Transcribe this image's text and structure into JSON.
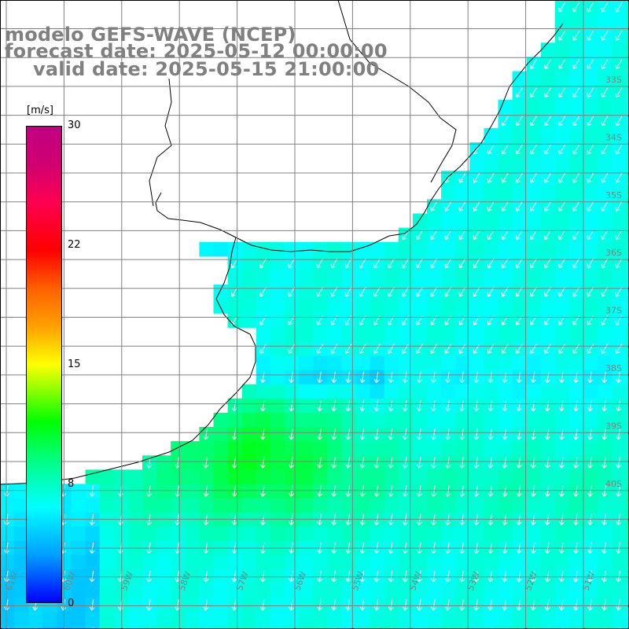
{
  "title": {
    "line1": "modelo GEFS-WAVE (NCEP)",
    "line2": "forecast date: 2025-05-12 00:00:00",
    "line3": "valid date: 2025-05-15 21:00:00"
  },
  "colorbar": {
    "unit": "[m/s]",
    "ticks": [
      "30",
      "22",
      "15",
      "8",
      "0"
    ],
    "colors": [
      "#0000ff",
      "#00a0ff",
      "#00ffff",
      "#00ff80",
      "#00ff00",
      "#ffff00",
      "#ff0000",
      "#c00080"
    ]
  },
  "map": {
    "field": "wind-speed-and-direction",
    "speed_range": [
      0,
      30
    ],
    "longitude_labels": [
      "61W",
      "60W",
      "59W",
      "58W",
      "57W",
      "56W",
      "55W",
      "54W",
      "53W",
      "52W",
      "51W",
      "50W"
    ],
    "latitude_labels": [
      "33S",
      "34S",
      "35S",
      "36S",
      "37S",
      "38S",
      "39S",
      "40S"
    ],
    "land_color": "#ffffff",
    "coastline_color": "#000000",
    "arrow_color": "#ffffff"
  }
}
